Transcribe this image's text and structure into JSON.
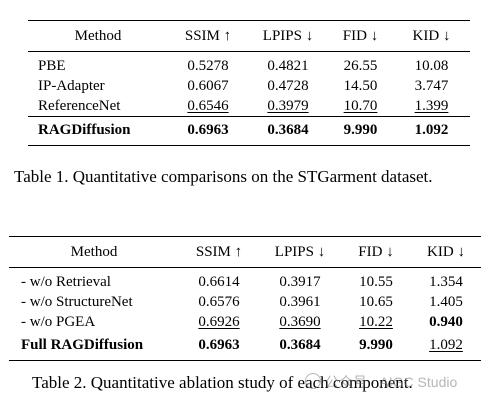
{
  "table1": {
    "headers": [
      "Method",
      "SSIM ↑",
      "LPIPS ↓",
      "FID ↓",
      "KID ↓"
    ],
    "rows": [
      [
        "PBE",
        "0.5278",
        "0.4821",
        "26.55",
        "10.08"
      ],
      [
        "IP-Adapter",
        "0.6067",
        "0.4728",
        "14.50",
        "3.747"
      ],
      [
        "ReferenceNet",
        "0.6546",
        "0.3979",
        "10.70",
        "1.399"
      ]
    ],
    "final_row": [
      "RAGDiffusion",
      "0.6963",
      "0.3684",
      "9.990",
      "1.092"
    ],
    "caption": "Table 1. Quantitative comparisons on the STGarment dataset."
  },
  "table2": {
    "headers": [
      "Method",
      "SSIM ↑",
      "LPIPS ↓",
      "FID ↓",
      "KID ↓"
    ],
    "rows": [
      [
        "- w/o Retrieval",
        "0.6614",
        "0.3917",
        "10.55",
        "1.354"
      ],
      [
        "- w/o StructureNet",
        "0.6576",
        "0.3961",
        "10.65",
        "1.405"
      ],
      [
        "- w/o PGEA",
        "0.6926",
        "0.3690",
        "10.22",
        "0.940"
      ]
    ],
    "final_row": [
      "Full RAGDiffusion",
      "0.6963",
      "0.3684",
      "9.990",
      "1.092"
    ],
    "caption": "Table 2. Quantitative ablation study of each component."
  },
  "watermark": "公众号 · AIGC Studio",
  "icons": {
    "watermark": "wechat-icon"
  }
}
